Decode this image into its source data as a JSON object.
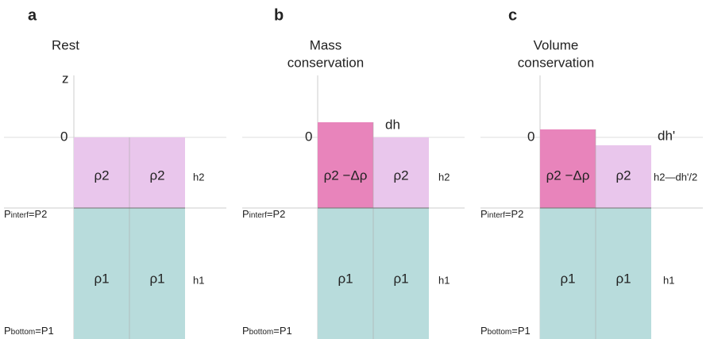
{
  "panels": [
    {
      "label": "a",
      "title": [
        "Rest"
      ],
      "axis_label": "z",
      "zero": "0",
      "annotation": null,
      "top_left": "ρ2",
      "top_right": "ρ2",
      "bottom_left": "ρ1",
      "bottom_right": "ρ1",
      "h_top": "h2",
      "h_bottom": "h1",
      "p_interf": {
        "p": "P",
        "sub": "interf",
        "rest": "=P2"
      },
      "p_bottom": {
        "p": "P",
        "sub": "bottom",
        "rest": "=P1"
      }
    },
    {
      "label": "b",
      "title": [
        "Mass",
        "conservation"
      ],
      "axis_label": null,
      "zero": "0",
      "annotation": "dh",
      "top_left": "ρ2 −Δρ",
      "top_right": "ρ2",
      "bottom_left": "ρ1",
      "bottom_right": "ρ1",
      "h_top": "h2",
      "h_bottom": "h1",
      "p_interf": {
        "p": "P",
        "sub": "interf",
        "rest": "=P2"
      },
      "p_bottom": {
        "p": "P",
        "sub": "bottom",
        "rest": "=P1"
      }
    },
    {
      "label": "c",
      "title": [
        "Volume",
        "conservation"
      ],
      "axis_label": null,
      "zero": "0",
      "annotation": "dh'",
      "top_left": "ρ2 −Δρ",
      "top_right": "ρ2",
      "bottom_left": "ρ1",
      "bottom_right": "ρ1",
      "h_top": "h2—dh'/2",
      "h_bottom": "h1",
      "p_interf": {
        "p": "P",
        "sub": "interf",
        "rest": "=P2"
      },
      "p_bottom": {
        "p": "P",
        "sub": "bottom",
        "rest": "=P1"
      }
    }
  ]
}
